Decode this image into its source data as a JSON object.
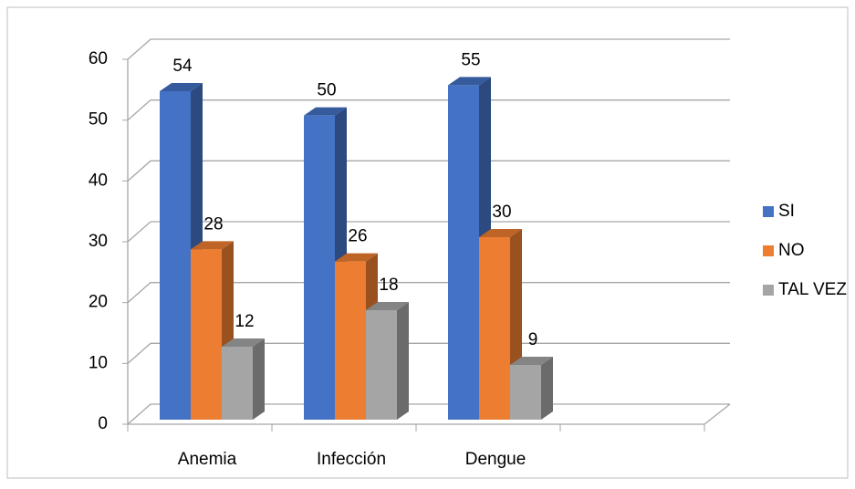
{
  "chart_data": {
    "type": "bar3d",
    "categories": [
      "Anemia",
      "Infección",
      "Dengue",
      null
    ],
    "series": [
      {
        "name": "SI",
        "color": "#4472c4",
        "values": [
          54,
          50,
          55,
          null
        ]
      },
      {
        "name": "NO",
        "color": "#ed7d31",
        "values": [
          28,
          26,
          30,
          null
        ]
      },
      {
        "name": "TAL VEZ",
        "color": "#a5a5a5",
        "values": [
          12,
          18,
          9,
          null
        ]
      }
    ],
    "ylim": [
      0,
      60
    ],
    "yticks": [
      0,
      10,
      20,
      30,
      40,
      50,
      60
    ],
    "grid": true,
    "legend": "right"
  }
}
